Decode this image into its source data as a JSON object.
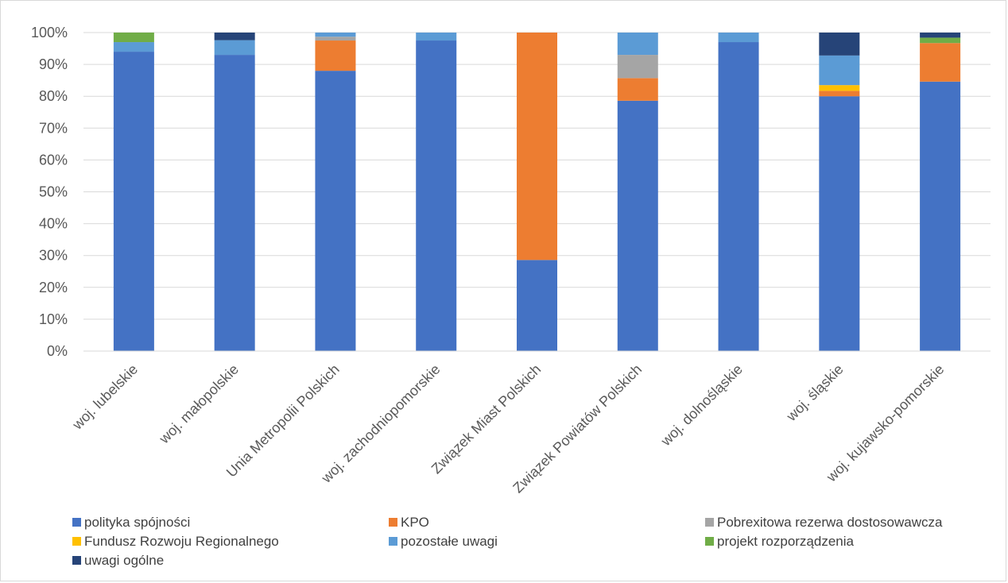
{
  "chart_data": {
    "type": "bar",
    "stacked": true,
    "normalized": true,
    "title": "",
    "xlabel": "",
    "ylabel": "",
    "ylim": [
      0,
      100
    ],
    "y_ticks": [
      "0%",
      "10%",
      "20%",
      "30%",
      "40%",
      "50%",
      "60%",
      "70%",
      "80%",
      "90%",
      "100%"
    ],
    "grid": true,
    "legend_position": "bottom",
    "categories": [
      "woj. lubelskie",
      "woj. małopolskie",
      "Unia Metropolii Polskich",
      "woj. zachodniopomorskie",
      "Związek Miast Polskich",
      "Związek Powiatów Polskich",
      "woj. dolnośląskie",
      "woj. śląskie",
      "woj. kujawsko-pomorskie"
    ],
    "series": [
      {
        "name": "polityka spójności",
        "color": "#4472C4",
        "values": [
          94,
          93,
          88,
          97.5,
          28.6,
          78.6,
          97,
          80,
          84.6
        ]
      },
      {
        "name": "KPO",
        "color": "#ED7D31",
        "values": [
          0,
          0,
          9.5,
          0,
          71.4,
          7.1,
          0,
          1.7,
          12.1
        ]
      },
      {
        "name": "Pobrexitowa rezerwa dostosowawcza",
        "color": "#A5A5A5",
        "values": [
          0,
          0,
          1.2,
          0,
          0,
          7.3,
          0,
          0,
          0
        ]
      },
      {
        "name": "Fundusz Rozwoju Regionalnego",
        "color": "#FFC000",
        "values": [
          0,
          0,
          0,
          0,
          0,
          0,
          0,
          1.8,
          0
        ]
      },
      {
        "name": "pozostałe uwagi",
        "color": "#5B9BD5",
        "values": [
          3,
          4.6,
          1.3,
          2.5,
          0,
          7,
          3,
          9.3,
          0
        ]
      },
      {
        "name": "projekt rozporządzenia",
        "color": "#70AD47",
        "values": [
          3,
          0,
          0,
          0,
          0,
          0,
          0,
          0,
          1.7
        ]
      },
      {
        "name": "uwagi ogólne",
        "color": "#264478",
        "values": [
          0,
          2.4,
          0,
          0,
          0,
          0,
          0,
          7.2,
          1.6
        ]
      }
    ]
  }
}
